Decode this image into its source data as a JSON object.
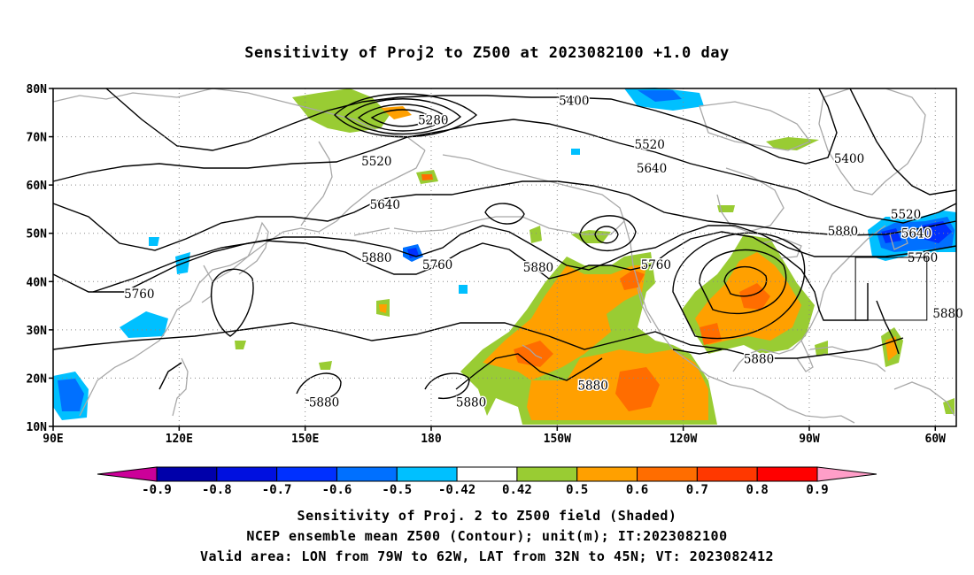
{
  "title": "Sensitivity of Proj2 to Z500 at 2023082100 +1.0 day",
  "map": {
    "lon_range": [
      90,
      305
    ],
    "lat_range": [
      10,
      80
    ],
    "lat_ticks": [
      {
        "value": 80,
        "label": "80N"
      },
      {
        "value": 70,
        "label": "70N"
      },
      {
        "value": 60,
        "label": "60N"
      },
      {
        "value": 50,
        "label": "50N"
      },
      {
        "value": 40,
        "label": "40N"
      },
      {
        "value": 30,
        "label": "30N"
      },
      {
        "value": 20,
        "label": "20N"
      },
      {
        "value": 10,
        "label": "10N"
      }
    ],
    "lon_ticks": [
      {
        "value": 90,
        "label": "90E"
      },
      {
        "value": 120,
        "label": "120E"
      },
      {
        "value": 150,
        "label": "150E"
      },
      {
        "value": 180,
        "label": "180"
      },
      {
        "value": 210,
        "label": "150W"
      },
      {
        "value": 240,
        "label": "120W"
      },
      {
        "value": 270,
        "label": "90W"
      },
      {
        "value": 300,
        "label": "60W"
      }
    ],
    "valid_area": {
      "lon": [
        281,
        298
      ],
      "lat": [
        32,
        45
      ]
    },
    "contour_labels": [
      {
        "text": "5400",
        "lon": 214,
        "lat": 77.5
      },
      {
        "text": "5280",
        "lon": 180.5,
        "lat": 73.5
      },
      {
        "text": "5520",
        "lon": 232,
        "lat": 68.5
      },
      {
        "text": "5640",
        "lon": 232.5,
        "lat": 63.5
      },
      {
        "text": "5400",
        "lon": 279.5,
        "lat": 65.5
      },
      {
        "text": "5520",
        "lon": 167,
        "lat": 65
      },
      {
        "text": "5640",
        "lon": 169,
        "lat": 56
      },
      {
        "text": "5520",
        "lon": 293,
        "lat": 54
      },
      {
        "text": "5640",
        "lon": 295.5,
        "lat": 50
      },
      {
        "text": "5880",
        "lon": 278,
        "lat": 50.5
      },
      {
        "text": "5760",
        "lon": 297,
        "lat": 45
      },
      {
        "text": "5880",
        "lon": 167,
        "lat": 45
      },
      {
        "text": "5760",
        "lon": 181.5,
        "lat": 43.5
      },
      {
        "text": "5880",
        "lon": 205.5,
        "lat": 43
      },
      {
        "text": "5760",
        "lon": 233.5,
        "lat": 43.5
      },
      {
        "text": "5760",
        "lon": 110.5,
        "lat": 37.5
      },
      {
        "text": "5880",
        "lon": 303,
        "lat": 33.5
      },
      {
        "text": "5880",
        "lon": 258,
        "lat": 24
      },
      {
        "text": "5880",
        "lon": 218.5,
        "lat": 18.5
      },
      {
        "text": "5880",
        "lon": 154.5,
        "lat": 15
      },
      {
        "text": "5880",
        "lon": 189.5,
        "lat": 15
      }
    ]
  },
  "colorbar": {
    "labels": [
      "-0.9",
      "-0.8",
      "-0.7",
      "-0.6",
      "-0.5",
      "-0.42",
      "0.42",
      "0.5",
      "0.6",
      "0.7",
      "0.8",
      "0.9"
    ],
    "colors": [
      "#cc0099",
      "#0000aa",
      "#0010e0",
      "#0030ff",
      "#0070ff",
      "#00c0ff",
      "#ffffff",
      "#99cc33",
      "#ffa000",
      "#ff6d00",
      "#ff3800",
      "#ff0000",
      "#ff9ec8"
    ]
  },
  "footer": {
    "line1": "Sensitivity of Proj. 2 to Z500 field (Shaded)",
    "line2": "NCEP ensemble mean Z500 (Contour); unit(m); IT:2023082100",
    "line3": "Valid area: LON from 79W to 62W, LAT from 32N to 45N; VT: 2023082412"
  }
}
